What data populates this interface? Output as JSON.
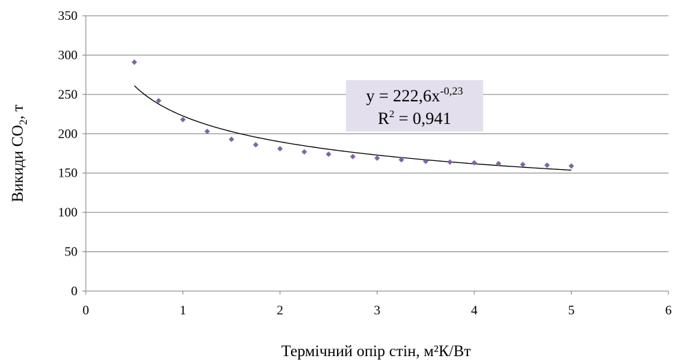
{
  "chart_data": {
    "type": "scatter",
    "xlabel": "Термічний опір стін, м²К/Вт",
    "ylabel_main": "Викиди CO",
    "ylabel_sub": "2",
    "ylabel_tail": ", т",
    "xlim": [
      0,
      6
    ],
    "ylim": [
      0,
      350
    ],
    "x_ticks": [
      0,
      1,
      2,
      3,
      4,
      5,
      6
    ],
    "y_ticks": [
      0,
      50,
      100,
      150,
      200,
      250,
      300,
      350
    ],
    "grid": {
      "horizontal": true,
      "vertical": false
    },
    "colors": {
      "marker": "#8064a2",
      "trendline": "#000000",
      "equation_box": "#e4dfec",
      "grid": "#7f7f7f"
    },
    "series": [
      {
        "marker": "diamond",
        "x": [
          0.5,
          0.75,
          1.0,
          1.25,
          1.5,
          1.75,
          2.0,
          2.25,
          2.5,
          2.75,
          3.0,
          3.25,
          3.5,
          3.75,
          4.0,
          4.25,
          4.5,
          4.75,
          5.0
        ],
        "y": [
          291,
          242,
          218,
          203,
          193,
          186,
          181,
          177,
          174,
          171,
          169,
          167,
          165,
          164,
          163,
          162,
          161,
          160,
          159
        ]
      }
    ],
    "trendline": {
      "type": "power",
      "coefficient": 222.6,
      "exponent": -0.23,
      "x_range": [
        0.5,
        5.0
      ],
      "equation_main": "y = 222,6x",
      "equation_exp": "-0,23",
      "r2_main": "R",
      "r2_sup": "2",
      "r2_tail": " = 0,941"
    }
  }
}
